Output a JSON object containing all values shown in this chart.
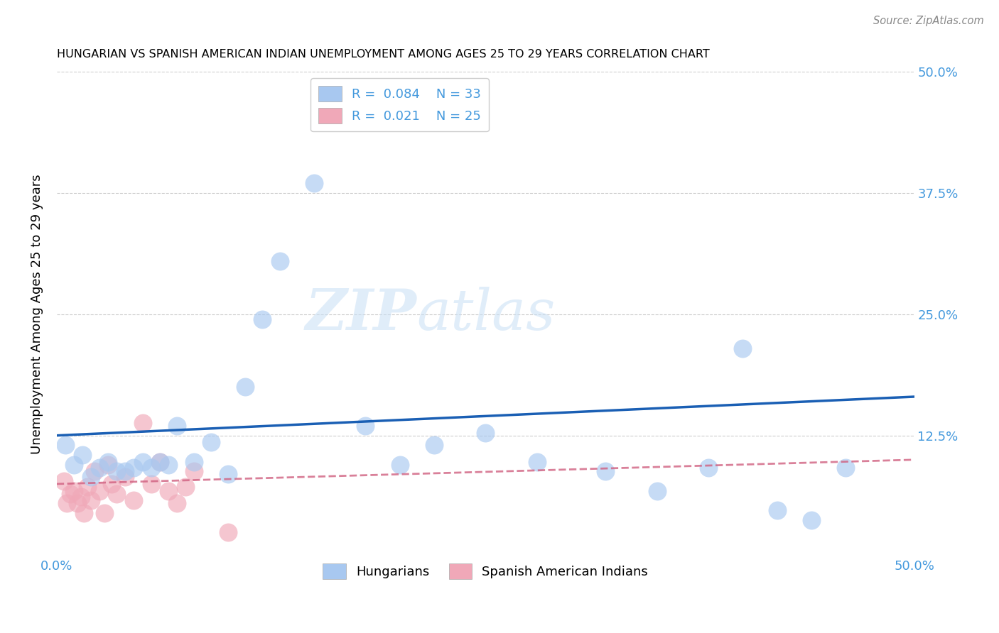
{
  "title": "HUNGARIAN VS SPANISH AMERICAN INDIAN UNEMPLOYMENT AMONG AGES 25 TO 29 YEARS CORRELATION CHART",
  "source": "Source: ZipAtlas.com",
  "ylabel": "Unemployment Among Ages 25 to 29 years",
  "watermark_zip": "ZIP",
  "watermark_atlas": "atlas",
  "xlim": [
    0.0,
    0.5
  ],
  "ylim": [
    0.0,
    0.5
  ],
  "hungarian_R": 0.084,
  "hungarian_N": 33,
  "spanish_R": 0.021,
  "spanish_N": 25,
  "hungarian_color": "#a8c8f0",
  "spanish_color": "#f0a8b8",
  "hungarian_line_color": "#1a5fb4",
  "spanish_line_color": "#d06080",
  "background_color": "#ffffff",
  "grid_color": "#cccccc",
  "axis_color": "#4499dd",
  "hung_x": [
    0.005,
    0.01,
    0.015,
    0.02,
    0.025,
    0.03,
    0.035,
    0.04,
    0.045,
    0.05,
    0.055,
    0.06,
    0.065,
    0.07,
    0.08,
    0.09,
    0.1,
    0.11,
    0.12,
    0.13,
    0.15,
    0.18,
    0.2,
    0.22,
    0.25,
    0.28,
    0.32,
    0.35,
    0.38,
    0.4,
    0.42,
    0.44,
    0.46
  ],
  "hung_y": [
    0.115,
    0.095,
    0.105,
    0.082,
    0.092,
    0.098,
    0.088,
    0.088,
    0.092,
    0.098,
    0.092,
    0.098,
    0.095,
    0.135,
    0.098,
    0.118,
    0.085,
    0.175,
    0.245,
    0.305,
    0.385,
    0.135,
    0.095,
    0.115,
    0.128,
    0.098,
    0.088,
    0.068,
    0.092,
    0.215,
    0.048,
    0.038,
    0.092
  ],
  "span_x": [
    0.004,
    0.006,
    0.008,
    0.01,
    0.012,
    0.014,
    0.016,
    0.018,
    0.02,
    0.022,
    0.025,
    0.028,
    0.03,
    0.032,
    0.035,
    0.04,
    0.045,
    0.05,
    0.055,
    0.06,
    0.065,
    0.07,
    0.075,
    0.08,
    0.1
  ],
  "span_y": [
    0.078,
    0.055,
    0.065,
    0.068,
    0.055,
    0.062,
    0.045,
    0.072,
    0.058,
    0.088,
    0.068,
    0.045,
    0.095,
    0.075,
    0.065,
    0.082,
    0.058,
    0.138,
    0.075,
    0.098,
    0.068,
    0.055,
    0.072,
    0.088,
    0.025
  ]
}
